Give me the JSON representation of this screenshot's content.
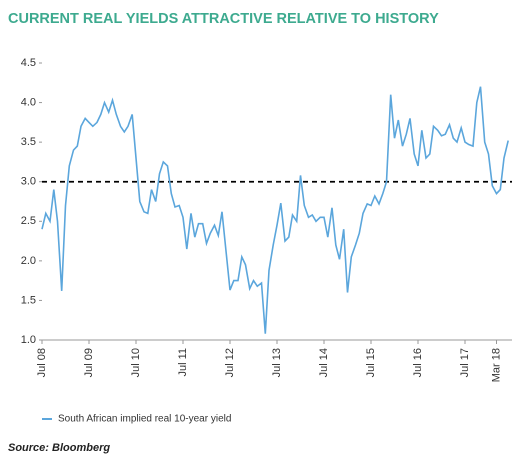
{
  "chart_data": {
    "type": "line",
    "title": "CURRENT REAL YIELDS ATTRACTIVE RELATIVE TO HISTORY",
    "source": "Source: Bloomberg",
    "x": [
      2008.5,
      2008.58,
      2008.67,
      2008.75,
      2008.83,
      2008.92,
      2009.0,
      2009.08,
      2009.17,
      2009.25,
      2009.33,
      2009.42,
      2009.5,
      2009.58,
      2009.67,
      2009.75,
      2009.83,
      2009.92,
      2010.0,
      2010.08,
      2010.17,
      2010.25,
      2010.33,
      2010.42,
      2010.5,
      2010.58,
      2010.67,
      2010.75,
      2010.83,
      2010.92,
      2011.0,
      2011.08,
      2011.17,
      2011.25,
      2011.33,
      2011.42,
      2011.5,
      2011.58,
      2011.67,
      2011.75,
      2011.83,
      2011.92,
      2012.0,
      2012.08,
      2012.17,
      2012.25,
      2012.33,
      2012.42,
      2012.5,
      2012.58,
      2012.67,
      2012.75,
      2012.83,
      2012.92,
      2013.0,
      2013.08,
      2013.17,
      2013.25,
      2013.33,
      2013.42,
      2013.5,
      2013.58,
      2013.67,
      2013.75,
      2013.83,
      2013.92,
      2014.0,
      2014.08,
      2014.17,
      2014.25,
      2014.33,
      2014.42,
      2014.5,
      2014.58,
      2014.67,
      2014.75,
      2014.83,
      2014.92,
      2015.0,
      2015.08,
      2015.17,
      2015.25,
      2015.33,
      2015.42,
      2015.5,
      2015.58,
      2015.67,
      2015.75,
      2015.83,
      2015.92,
      2016.0,
      2016.08,
      2016.17,
      2016.25,
      2016.33,
      2016.42,
      2016.5,
      2016.58,
      2016.67,
      2016.75,
      2016.83,
      2016.92,
      2017.0,
      2017.08,
      2017.17,
      2017.25,
      2017.33,
      2017.42,
      2017.5,
      2017.58,
      2017.67,
      2017.75,
      2017.83,
      2017.92,
      2018.0,
      2018.08,
      2018.17,
      2018.25,
      2018.33,
      2018.42
    ],
    "series": [
      {
        "name": "South African implied real 10-year yield",
        "color": "#5ba6dc",
        "values": [
          2.4,
          2.6,
          2.5,
          2.9,
          2.5,
          1.62,
          2.7,
          3.2,
          3.4,
          3.45,
          3.7,
          3.8,
          3.75,
          3.7,
          3.75,
          3.85,
          4.0,
          3.88,
          4.03,
          3.85,
          3.7,
          3.63,
          3.7,
          3.85,
          3.3,
          2.75,
          2.62,
          2.6,
          2.9,
          2.75,
          3.1,
          3.25,
          3.2,
          2.85,
          2.68,
          2.7,
          2.55,
          2.15,
          2.6,
          2.3,
          2.47,
          2.47,
          2.22,
          2.35,
          2.45,
          2.32,
          2.62,
          2.1,
          1.63,
          1.75,
          1.75,
          2.05,
          1.95,
          1.65,
          1.75,
          1.68,
          1.72,
          1.08,
          1.88,
          2.2,
          2.45,
          2.73,
          2.25,
          2.3,
          2.58,
          2.5,
          3.08,
          2.7,
          2.55,
          2.58,
          2.5,
          2.55,
          2.55,
          2.3,
          2.67,
          2.2,
          2.02,
          2.4,
          1.6,
          2.05,
          2.2,
          2.35,
          2.6,
          2.72,
          2.7,
          2.82,
          2.72,
          2.85,
          3.0,
          4.1,
          3.55,
          3.78,
          3.45,
          3.6,
          3.8,
          3.35,
          3.2,
          3.65,
          3.3,
          3.35,
          3.7,
          3.65,
          3.58,
          3.6,
          3.72,
          3.55,
          3.5,
          3.68,
          3.5,
          3.47,
          3.45,
          4.0,
          4.2,
          3.5,
          3.35,
          2.95,
          2.85,
          2.9,
          3.3,
          3.52
        ]
      }
    ],
    "reference_line": 3,
    "xlim": [
      2008.5,
      2018.5
    ],
    "xticks": [
      {
        "value": 2008.5,
        "label": "Jul 08"
      },
      {
        "value": 2009.5,
        "label": "Jul 09"
      },
      {
        "value": 2010.5,
        "label": "Jul 10"
      },
      {
        "value": 2011.5,
        "label": "Jul 11"
      },
      {
        "value": 2012.5,
        "label": "Jul 12"
      },
      {
        "value": 2013.5,
        "label": "Jul 13"
      },
      {
        "value": 2014.5,
        "label": "Jul 14"
      },
      {
        "value": 2015.5,
        "label": "Jul 15"
      },
      {
        "value": 2016.5,
        "label": "Jul 16"
      },
      {
        "value": 2017.5,
        "label": "Jul 17"
      },
      {
        "value": 2018.17,
        "label": "Mar 18"
      }
    ],
    "ylim": [
      1.0,
      4.5
    ],
    "yticks": [
      {
        "value": 1.0,
        "label": "1.0"
      },
      1.5,
      {
        "value": 2.0,
        "label": "2.0"
      },
      2.5,
      {
        "value": 3.0,
        "label": "3.0"
      },
      3.5,
      {
        "value": 4.0,
        "label": "4.0"
      },
      4.5
    ]
  }
}
